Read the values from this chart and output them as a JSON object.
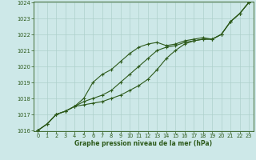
{
  "x": [
    0,
    1,
    2,
    3,
    4,
    5,
    6,
    7,
    8,
    9,
    10,
    11,
    12,
    13,
    14,
    15,
    16,
    17,
    18,
    19,
    20,
    21,
    22,
    23
  ],
  "line_top": [
    1016.0,
    1016.4,
    1017.0,
    1017.2,
    1017.5,
    1018.0,
    1019.0,
    1019.5,
    1019.8,
    1020.3,
    1020.8,
    1021.2,
    1021.4,
    1021.5,
    1021.3,
    1021.4,
    1021.6,
    1021.7,
    1021.8,
    1021.7,
    1022.0,
    1022.8,
    1023.3,
    1024.0
  ],
  "line_mid": [
    1016.0,
    1016.4,
    1017.0,
    1017.2,
    1017.5,
    1017.8,
    1018.0,
    1018.2,
    1018.5,
    1019.0,
    1019.5,
    1020.0,
    1020.5,
    1021.0,
    1021.2,
    1021.3,
    1021.5,
    1021.6,
    1021.7,
    1021.7,
    1022.0,
    1022.8,
    1023.3,
    1024.0
  ],
  "line_bot": [
    1016.0,
    1016.4,
    1017.0,
    1017.2,
    1017.5,
    1017.6,
    1017.7,
    1017.8,
    1018.0,
    1018.2,
    1018.5,
    1018.8,
    1019.2,
    1019.8,
    1020.5,
    1021.0,
    1021.4,
    1021.6,
    1021.7,
    1021.7,
    1022.0,
    1022.8,
    1023.3,
    1024.0
  ],
  "ylim": [
    1016,
    1024
  ],
  "xlim": [
    -0.5,
    23.5
  ],
  "yticks": [
    1016,
    1017,
    1018,
    1019,
    1020,
    1021,
    1022,
    1023,
    1024
  ],
  "xticks": [
    0,
    1,
    2,
    3,
    4,
    5,
    6,
    7,
    8,
    9,
    10,
    11,
    12,
    13,
    14,
    15,
    16,
    17,
    18,
    19,
    20,
    21,
    22,
    23
  ],
  "xlabel": "Graphe pression niveau de la mer (hPa)",
  "line_color": "#2d5a1b",
  "bg_color": "#cde8e8",
  "grid_color": "#aed0cc",
  "tick_color": "#2d5a1b",
  "marker": "+",
  "markersize": 3,
  "linewidth": 0.8,
  "tick_fontsize": 4.8,
  "xlabel_fontsize": 5.5
}
